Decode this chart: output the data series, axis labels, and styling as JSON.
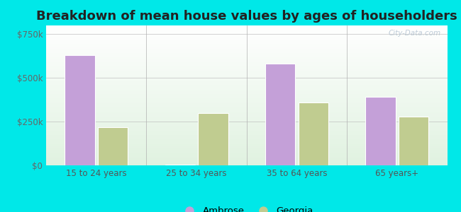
{
  "title": "Breakdown of mean house values by ages of householders",
  "categories": [
    "15 to 24 years",
    "25 to 34 years",
    "35 to 64 years",
    "65 years+"
  ],
  "ambrose_values": [
    630000,
    5000,
    580000,
    390000
  ],
  "georgia_values": [
    220000,
    300000,
    360000,
    280000
  ],
  "ambrose_color": "#c4a0d8",
  "georgia_color": "#c0cc90",
  "background_color": "#00e8e8",
  "ylim": [
    0,
    800000
  ],
  "yticks": [
    0,
    250000,
    500000,
    750000
  ],
  "ytick_labels": [
    "$0",
    "$250k",
    "$500k",
    "$750k"
  ],
  "watermark": "City-Data.com",
  "legend_ambrose": "Ambrose",
  "legend_georgia": "Georgia",
  "title_fontsize": 13,
  "tick_fontsize": 8.5,
  "legend_fontsize": 9.5,
  "bar_width": 0.3,
  "bar_gap": 0.03
}
